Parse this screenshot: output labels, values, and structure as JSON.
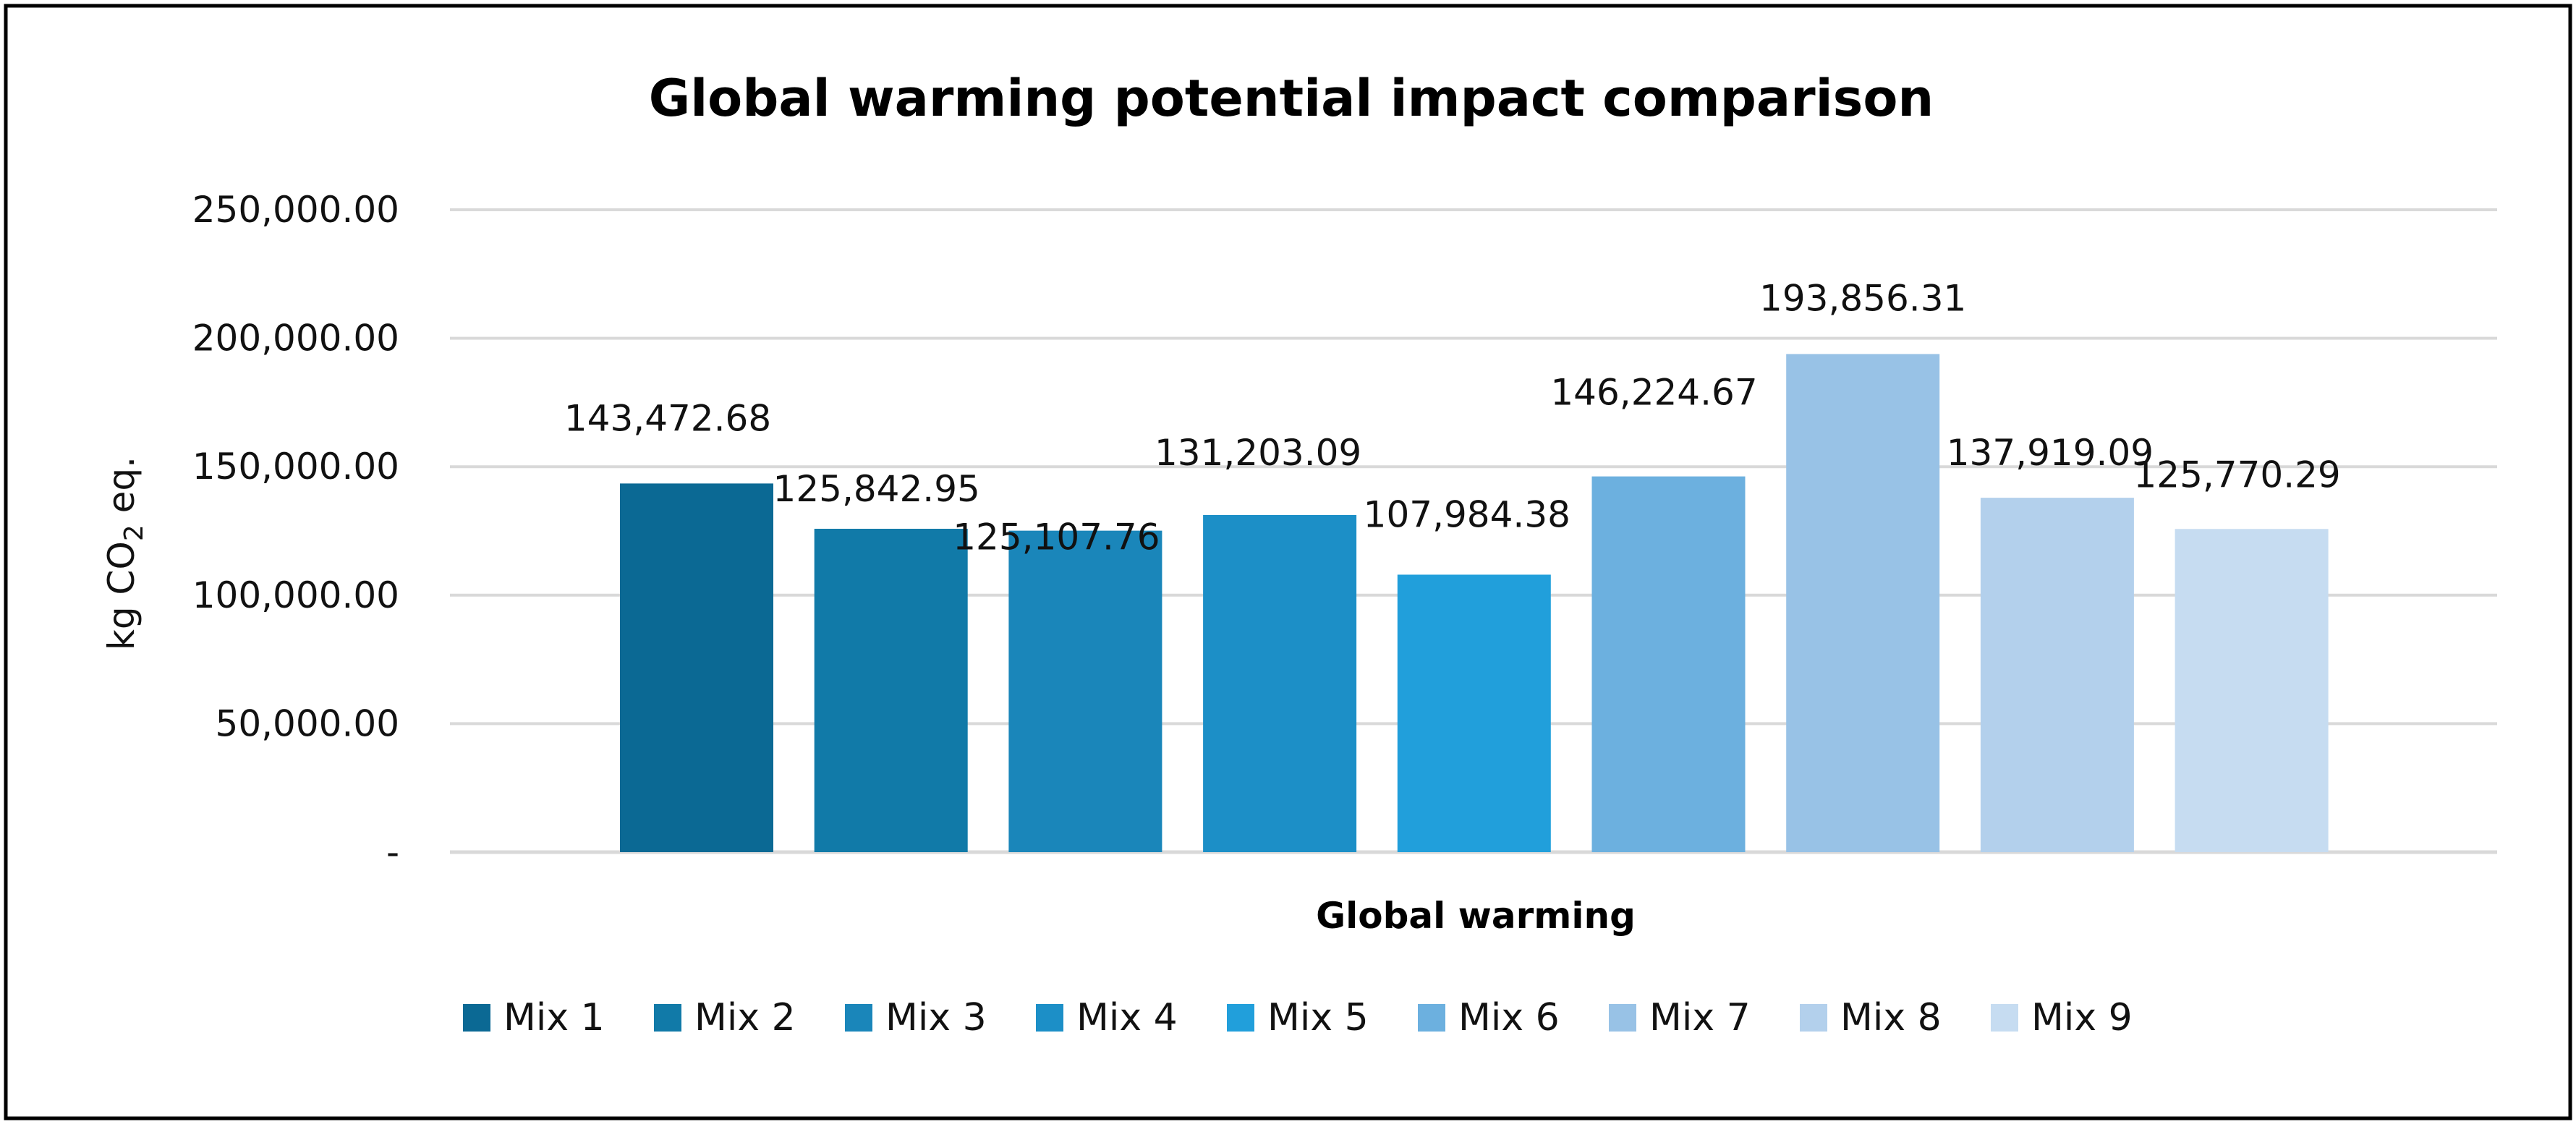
{
  "chart_data": {
    "type": "bar",
    "title": "Global warming potential impact comparison",
    "xlabel": "Global warming",
    "ylabel": {
      "prefix": "kg CO",
      "subscript": "2",
      "suffix": " eq."
    },
    "ylim": [
      0,
      250000
    ],
    "y_ticks": [
      0,
      50000,
      100000,
      150000,
      200000,
      250000
    ],
    "y_tick_labels": [
      "-",
      "50,000.00",
      "100,000.00",
      "150,000.00",
      "200,000.00",
      "250,000.00"
    ],
    "grid": true,
    "legend_position": "bottom",
    "categories": [
      "Global warming"
    ],
    "series": [
      {
        "name": "Mix 1",
        "value": 143472.68,
        "label": "143,472.68",
        "color": "#0b6994"
      },
      {
        "name": "Mix 2",
        "value": 125842.95,
        "label": "125,842.95",
        "color": "#117aa8"
      },
      {
        "name": "Mix 3",
        "value": 125107.76,
        "label": "125,107.76",
        "color": "#1a86ba"
      },
      {
        "name": "Mix 4",
        "value": 131203.09,
        "label": "131,203.09",
        "color": "#1c8fc7"
      },
      {
        "name": "Mix 5",
        "value": 107984.38,
        "label": "107,984.38",
        "color": "#219fdb"
      },
      {
        "name": "Mix 6",
        "value": 146224.67,
        "label": "146,224.67",
        "color": "#6cb0df"
      },
      {
        "name": "Mix 7",
        "value": 193856.31,
        "label": "193,856.31",
        "color": "#98c2e6"
      },
      {
        "name": "Mix 8",
        "value": 137919.09,
        "label": "137,919.09",
        "color": "#b3d0ec"
      },
      {
        "name": "Mix 9",
        "value": 125770.29,
        "label": "125,770.29",
        "color": "#c6dcf1"
      }
    ]
  },
  "colors": {
    "frame": "#000000",
    "grid": "#d9d9d9",
    "text": "#111111"
  }
}
